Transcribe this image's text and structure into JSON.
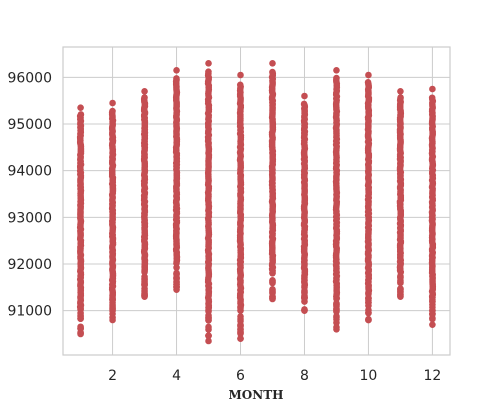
{
  "chart_data": {
    "type": "scatter",
    "title": "",
    "xlabel": "MONTH",
    "ylabel": "",
    "xlim": [
      0.45,
      12.55
    ],
    "ylim": [
      90050,
      96650
    ],
    "grid": true,
    "marker_color": "#c44e52",
    "xticks": [
      2,
      4,
      6,
      8,
      10,
      12
    ],
    "xtick_labels": [
      "2",
      "4",
      "6",
      "8",
      "10",
      "12"
    ],
    "yticks": [
      91000,
      92000,
      93000,
      94000,
      95000,
      96000
    ],
    "ytick_labels": [
      "91000",
      "92000",
      "93000",
      "94000",
      "95000",
      "96000"
    ],
    "series": [
      {
        "x": [
          1,
          2,
          3,
          4,
          5,
          6,
          7,
          8,
          9,
          10,
          11,
          12
        ],
        "y_min": [
          90500,
          90800,
          91300,
          91450,
          90350,
          90400,
          91250,
          91000,
          90600,
          90800,
          91300,
          90700
        ],
        "y_max": [
          95350,
          95450,
          95700,
          96150,
          96300,
          96050,
          96300,
          95600,
          96150,
          96050,
          95700,
          95750
        ]
      }
    ]
  }
}
